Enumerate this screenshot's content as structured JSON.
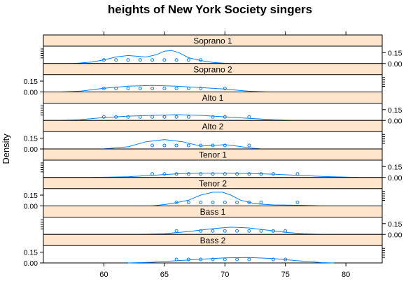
{
  "chart_data": {
    "type": "density",
    "title": "heights of New York Society singers",
    "xlabel": "",
    "ylabel": "Density",
    "x_ticks": [
      60,
      65,
      70,
      75,
      80
    ],
    "x_range": [
      55,
      83
    ],
    "y_ticks": [
      0.0,
      0.15
    ],
    "y_tick_labels": [
      "0.00",
      "0.15"
    ],
    "panel_ymax": 0.24,
    "strip_color": "#ffe5cc",
    "line_color": "#0080ff",
    "panels": [
      {
        "name": "Soprano 1",
        "points": [
          60,
          61,
          62,
          63,
          64,
          65,
          66,
          67,
          68
        ],
        "density": {
          "x": [
            57.5,
            59,
            60,
            61,
            62,
            62.7,
            63.5,
            64.3,
            65,
            65.6,
            66.2,
            67,
            68,
            69,
            70.3
          ],
          "y": [
            0.0,
            0.02,
            0.05,
            0.09,
            0.11,
            0.1,
            0.09,
            0.12,
            0.17,
            0.18,
            0.15,
            0.08,
            0.04,
            0.015,
            0.0
          ]
        }
      },
      {
        "name": "Soprano 2",
        "points": [
          60,
          61,
          62,
          63,
          64,
          65,
          66,
          67,
          68,
          70
        ],
        "density": {
          "x": [
            56.5,
            58,
            60,
            62,
            64,
            66,
            68,
            70,
            72,
            73.5
          ],
          "y": [
            0.0,
            0.01,
            0.05,
            0.08,
            0.09,
            0.08,
            0.06,
            0.04,
            0.01,
            0.0
          ]
        }
      },
      {
        "name": "Alto 1",
        "points": [
          60,
          61,
          62,
          63,
          64,
          65,
          66,
          67,
          69,
          70,
          72
        ],
        "density": {
          "x": [
            56.5,
            58,
            60,
            62,
            64,
            66,
            68,
            70,
            72,
            74,
            75.5
          ],
          "y": [
            0.0,
            0.01,
            0.04,
            0.06,
            0.07,
            0.08,
            0.07,
            0.05,
            0.03,
            0.01,
            0.0
          ]
        }
      },
      {
        "name": "Alto 2",
        "points": [
          64,
          65,
          66,
          67,
          68,
          69,
          70,
          72
        ],
        "density": {
          "x": [
            60,
            62,
            63.5,
            65,
            66.5,
            68,
            69.3,
            70,
            71,
            72,
            73
          ],
          "y": [
            0.0,
            0.03,
            0.1,
            0.13,
            0.1,
            0.04,
            0.05,
            0.06,
            0.04,
            0.015,
            0.0
          ]
        }
      },
      {
        "name": "Tenor 1",
        "points": [
          64,
          65,
          66,
          67,
          68,
          69,
          70,
          71,
          72,
          73,
          74,
          76
        ],
        "density": {
          "x": [
            59,
            62,
            64,
            66,
            68,
            70,
            72,
            74,
            76,
            78,
            80,
            81
          ],
          "y": [
            0.0,
            0.01,
            0.03,
            0.05,
            0.06,
            0.06,
            0.055,
            0.045,
            0.03,
            0.015,
            0.005,
            0.0
          ]
        }
      },
      {
        "name": "Tenor 2",
        "points": [
          66,
          67,
          68,
          69,
          70,
          71,
          72,
          73,
          76
        ],
        "density": {
          "x": [
            64,
            65.5,
            67,
            68,
            69,
            69.8,
            70.5,
            71.3,
            72.5,
            74,
            76,
            78
          ],
          "y": [
            0.0,
            0.03,
            0.08,
            0.15,
            0.19,
            0.19,
            0.15,
            0.08,
            0.03,
            0.015,
            0.01,
            0.0
          ]
        }
      },
      {
        "name": "Bass 1",
        "points": [
          66,
          68,
          69,
          70,
          71,
          72,
          73,
          74,
          75
        ],
        "density": {
          "x": [
            63,
            65,
            67,
            69,
            70.5,
            72,
            73.5,
            75,
            76.5,
            78
          ],
          "y": [
            0.0,
            0.01,
            0.04,
            0.08,
            0.1,
            0.09,
            0.06,
            0.03,
            0.01,
            0.0
          ]
        }
      },
      {
        "name": "Bass 2",
        "points": [
          66,
          67,
          68,
          69,
          70,
          71,
          72,
          74,
          75
        ],
        "density": {
          "x": [
            62,
            64,
            66,
            68,
            70,
            72,
            74,
            76,
            78,
            79
          ],
          "y": [
            0.0,
            0.01,
            0.03,
            0.05,
            0.07,
            0.075,
            0.06,
            0.03,
            0.005,
            0.0
          ]
        }
      }
    ]
  }
}
